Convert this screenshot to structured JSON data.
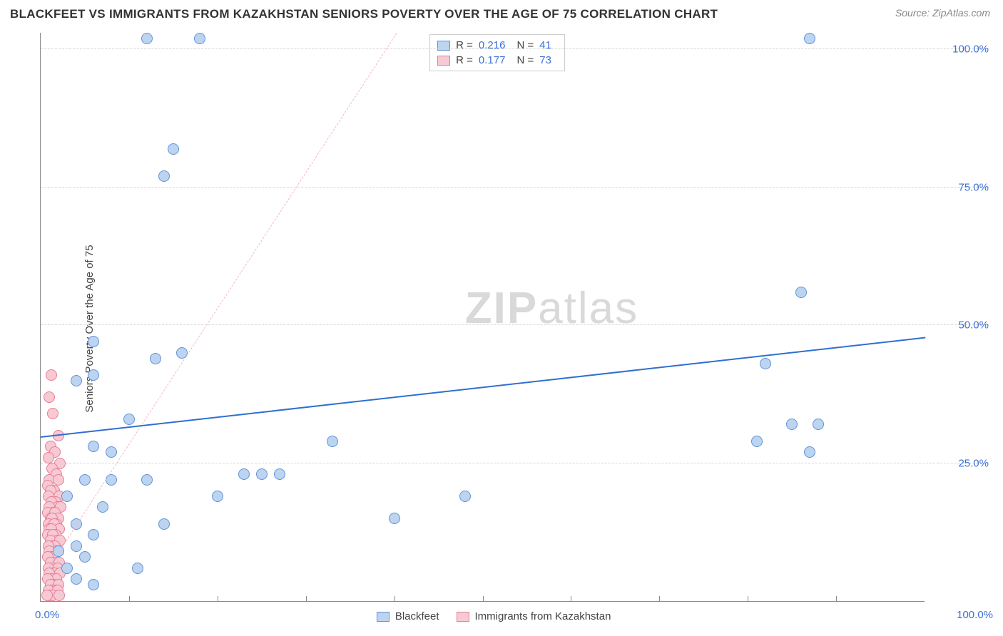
{
  "header": {
    "title": "BLACKFEET VS IMMIGRANTS FROM KAZAKHSTAN SENIORS POVERTY OVER THE AGE OF 75 CORRELATION CHART",
    "source_prefix": "Source: ",
    "source_name": "ZipAtlas.com"
  },
  "watermark": {
    "bold": "ZIP",
    "light": "atlas"
  },
  "chart": {
    "type": "scatter",
    "ylabel": "Seniors Poverty Over the Age of 75",
    "xlim": [
      0,
      100
    ],
    "ylim": [
      0,
      103
    ],
    "x_ticks_minor": [
      10,
      20,
      30,
      40,
      50,
      60,
      70,
      80,
      90
    ],
    "y_grid": [
      25,
      50,
      75,
      100
    ],
    "y_tick_labels": [
      "25.0%",
      "50.0%",
      "75.0%",
      "100.0%"
    ],
    "x_tick_left": "0.0%",
    "x_tick_right": "100.0%",
    "background_color": "#ffffff",
    "grid_color": "#d5d5d5",
    "axis_color": "#888888",
    "tick_label_color": "#3b6fd6",
    "marker_radius": 8,
    "series": {
      "blackfeet": {
        "label": "Blackfeet",
        "fill": "#bcd4f0",
        "stroke": "#5f93d8",
        "R": "0.216",
        "N": "41",
        "trend": {
          "y_at_x0": 30,
          "y_at_x100": 48,
          "style": "solid",
          "color": "#2f6fd0"
        },
        "points": [
          [
            12,
            102
          ],
          [
            18,
            102
          ],
          [
            87,
            102
          ],
          [
            15,
            82
          ],
          [
            14,
            77
          ],
          [
            86,
            56
          ],
          [
            6,
            47
          ],
          [
            4,
            40
          ],
          [
            6,
            41
          ],
          [
            13,
            44
          ],
          [
            16,
            45
          ],
          [
            10,
            33
          ],
          [
            82,
            43
          ],
          [
            81,
            29
          ],
          [
            85,
            32
          ],
          [
            88,
            32
          ],
          [
            87,
            27
          ],
          [
            33,
            29
          ],
          [
            23,
            23
          ],
          [
            25,
            23
          ],
          [
            27,
            23
          ],
          [
            6,
            28
          ],
          [
            8,
            27
          ],
          [
            5,
            22
          ],
          [
            8,
            22
          ],
          [
            12,
            22
          ],
          [
            20,
            19
          ],
          [
            3,
            19
          ],
          [
            7,
            17
          ],
          [
            14,
            14
          ],
          [
            4,
            14
          ],
          [
            40,
            15
          ],
          [
            48,
            19
          ],
          [
            11,
            6
          ],
          [
            6,
            12
          ],
          [
            4,
            10
          ],
          [
            2,
            9
          ],
          [
            5,
            8
          ],
          [
            3,
            6
          ],
          [
            4,
            4
          ],
          [
            6,
            3
          ]
        ]
      },
      "kazakhstan": {
        "label": "Immigrants from Kazakhstan",
        "fill": "#f7c9d3",
        "stroke": "#e77d94",
        "R": "0.177",
        "N": "73",
        "trend": {
          "y_at_x0": 4,
          "y_at_x100": 250,
          "style": "dashed",
          "color": "#f2b8c4"
        },
        "points": [
          [
            1.2,
            41
          ],
          [
            1.0,
            37
          ],
          [
            1.4,
            34
          ],
          [
            2.0,
            30
          ],
          [
            1.1,
            28
          ],
          [
            1.6,
            27
          ],
          [
            0.9,
            26
          ],
          [
            2.2,
            25
          ],
          [
            1.3,
            24
          ],
          [
            1.8,
            23
          ],
          [
            1.0,
            22
          ],
          [
            2.0,
            22
          ],
          [
            0.8,
            21
          ],
          [
            1.5,
            20
          ],
          [
            1.1,
            20
          ],
          [
            2.1,
            19
          ],
          [
            1.7,
            18
          ],
          [
            0.9,
            19
          ],
          [
            1.2,
            18
          ],
          [
            1.9,
            17
          ],
          [
            1.0,
            17
          ],
          [
            2.3,
            17
          ],
          [
            1.4,
            16
          ],
          [
            0.8,
            16
          ],
          [
            1.6,
            16
          ],
          [
            1.1,
            15
          ],
          [
            2.0,
            15
          ],
          [
            1.3,
            15
          ],
          [
            1.8,
            14
          ],
          [
            0.9,
            14
          ],
          [
            1.5,
            14
          ],
          [
            1.0,
            13
          ],
          [
            2.1,
            13
          ],
          [
            1.2,
            13
          ],
          [
            1.7,
            12
          ],
          [
            0.8,
            12
          ],
          [
            1.4,
            12
          ],
          [
            1.9,
            11
          ],
          [
            1.1,
            11
          ],
          [
            2.2,
            11
          ],
          [
            1.3,
            10
          ],
          [
            1.6,
            10
          ],
          [
            0.9,
            10
          ],
          [
            1.8,
            9
          ],
          [
            1.0,
            9
          ],
          [
            2.0,
            9
          ],
          [
            1.2,
            8
          ],
          [
            1.5,
            8
          ],
          [
            0.8,
            8
          ],
          [
            1.7,
            7
          ],
          [
            1.1,
            7
          ],
          [
            2.1,
            7
          ],
          [
            1.3,
            6
          ],
          [
            1.9,
            6
          ],
          [
            0.9,
            6
          ],
          [
            1.4,
            5
          ],
          [
            1.6,
            5
          ],
          [
            1.0,
            5
          ],
          [
            2.2,
            5
          ],
          [
            1.2,
            4
          ],
          [
            1.8,
            4
          ],
          [
            0.8,
            4
          ],
          [
            1.5,
            3
          ],
          [
            1.1,
            3
          ],
          [
            2.0,
            3
          ],
          [
            1.3,
            2
          ],
          [
            1.7,
            2
          ],
          [
            0.9,
            2
          ],
          [
            1.9,
            2
          ],
          [
            1.0,
            1
          ],
          [
            1.4,
            1
          ],
          [
            2.1,
            1
          ],
          [
            0.7,
            1
          ]
        ]
      }
    },
    "legend_top_labels": {
      "R": "R =",
      "N": "N ="
    }
  }
}
